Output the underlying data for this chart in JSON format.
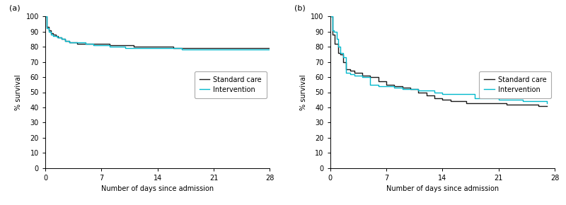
{
  "panel_a_label": "(a)",
  "panel_b_label": "(b)",
  "xlabel": "Number of days since admission",
  "ylabel": "% survival",
  "xlim": [
    0,
    28
  ],
  "ylim": [
    0,
    100
  ],
  "xticks": [
    0,
    7,
    14,
    21,
    28
  ],
  "yticks": [
    0,
    10,
    20,
    30,
    40,
    50,
    60,
    70,
    80,
    90,
    100
  ],
  "color_standard": "#1a1a1a",
  "color_intervention": "#00b8cc",
  "legend_labels": [
    "Standard care",
    "Intervention"
  ],
  "panel_a_standard_x": [
    0,
    0.2,
    0.4,
    0.7,
    1.0,
    1.3,
    1.6,
    2.0,
    2.5,
    3.0,
    3.5,
    4.0,
    5.0,
    6.0,
    7.0,
    8.0,
    9.0,
    10.0,
    11.0,
    12.0,
    13.0,
    14.0,
    16.0,
    18.0,
    20.0,
    21.0,
    23.0,
    25.0,
    28.0
  ],
  "panel_a_standard_y": [
    100,
    93,
    91,
    89,
    88,
    87,
    86,
    85,
    84,
    83,
    83,
    82,
    82,
    82,
    82,
    81,
    81,
    81,
    80,
    80,
    80,
    80,
    79,
    79,
    79,
    79,
    79,
    79,
    79
  ],
  "panel_a_intervention_x": [
    0,
    0.2,
    0.4,
    0.7,
    1.0,
    1.5,
    2.0,
    2.5,
    3.0,
    4.0,
    5.0,
    6.0,
    7.0,
    8.0,
    9.0,
    10.0,
    11.0,
    12.0,
    13.0,
    14.0,
    15.0,
    17.0,
    19.0,
    21.0,
    23.0,
    25.0,
    28.0
  ],
  "panel_a_intervention_y": [
    100,
    92,
    90,
    88,
    87,
    86,
    85,
    84,
    83,
    83,
    82,
    81,
    81,
    80,
    80,
    79,
    79,
    79,
    79,
    79,
    79,
    78,
    78,
    78,
    78,
    78,
    78
  ],
  "panel_b_standard_x": [
    0,
    0.3,
    0.6,
    1.0,
    1.3,
    1.6,
    2.0,
    2.5,
    3.0,
    4.0,
    5.0,
    6.0,
    7.0,
    8.0,
    9.0,
    10.0,
    11.0,
    12.0,
    13.0,
    14.0,
    15.0,
    17.0,
    19.0,
    21.0,
    22.0,
    24.0,
    26.0,
    27.0
  ],
  "panel_b_standard_y": [
    100,
    88,
    82,
    76,
    75,
    70,
    65,
    64,
    63,
    61,
    60,
    57,
    55,
    54,
    53,
    52,
    50,
    48,
    46,
    45,
    44,
    43,
    43,
    43,
    42,
    42,
    41,
    41
  ],
  "panel_b_intervention_x": [
    0,
    0.3,
    0.5,
    0.8,
    1.0,
    1.3,
    1.6,
    2.0,
    2.5,
    3.0,
    4.0,
    5.0,
    6.0,
    7.0,
    8.0,
    9.0,
    10.0,
    11.0,
    12.0,
    13.0,
    14.0,
    16.0,
    18.0,
    20.0,
    21.0,
    22.0,
    24.0,
    26.0,
    27.0
  ],
  "panel_b_intervention_y": [
    100,
    91,
    90,
    85,
    80,
    76,
    73,
    63,
    62,
    61,
    60,
    55,
    54,
    54,
    53,
    52,
    52,
    51,
    51,
    50,
    49,
    49,
    46,
    46,
    45,
    45,
    44,
    44,
    43
  ]
}
